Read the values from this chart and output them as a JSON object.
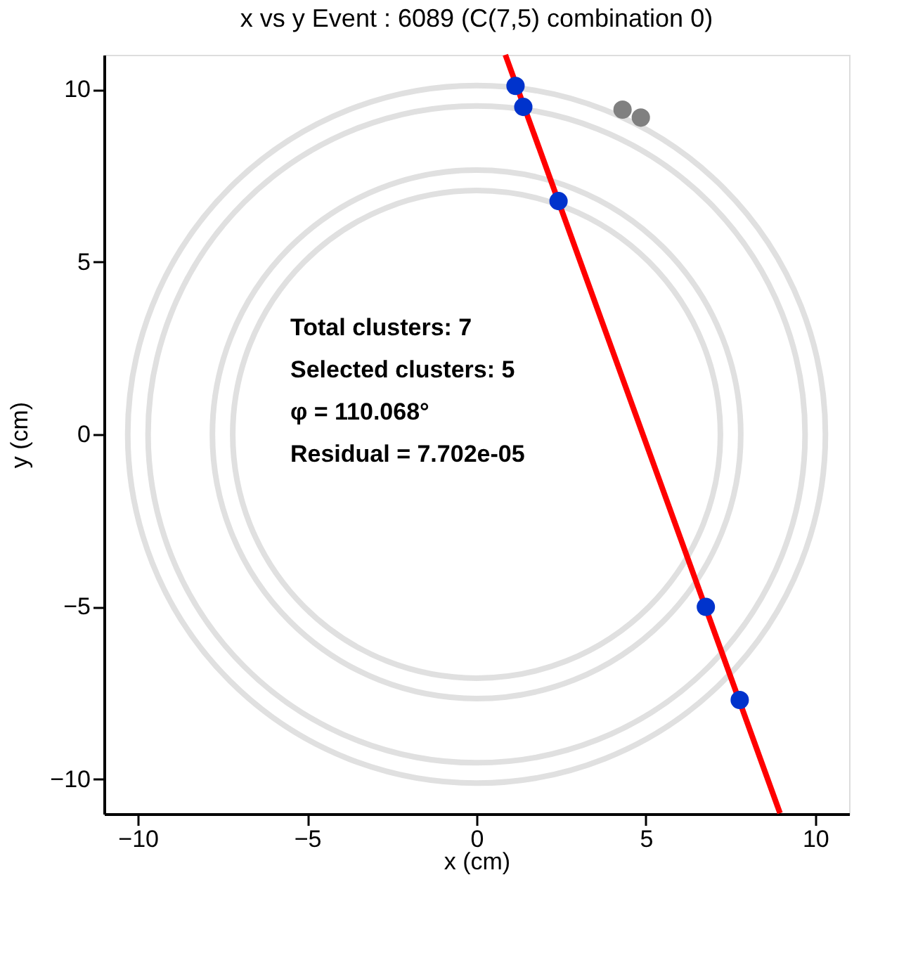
{
  "chart_data": {
    "type": "scatter",
    "title": "x vs y Event : 6089 (C(7,5) combination 0)",
    "xlabel": "x (cm)",
    "ylabel": "y (cm)",
    "xlim": [
      -11,
      11
    ],
    "ylim": [
      -11,
      11
    ],
    "xticks": [
      -10,
      -5,
      0,
      5,
      10
    ],
    "yticks": [
      -10,
      -5,
      0,
      5,
      10
    ],
    "grid": false,
    "marker": "circle",
    "annotations": [
      "Total clusters: 7",
      "Selected clusters: 5",
      "φ = 110.068°",
      "Residual = 7.702e-05"
    ],
    "series": [
      {
        "color": "#808080",
        "x": [
          4.31,
          4.85
        ],
        "values": [
          9.41,
          9.18
        ]
      },
      {
        "type": "line",
        "marker": "none",
        "color": "#ff0000",
        "x": [
          0.85,
          8.96
        ],
        "values": [
          11.0,
          -10.98
        ]
      },
      {
        "color": "#0033cc",
        "x": [
          1.15,
          1.38,
          2.42,
          6.77,
          7.77
        ],
        "values": [
          10.1,
          9.49,
          6.76,
          -5.0,
          -7.7
        ]
      }
    ]
  }
}
